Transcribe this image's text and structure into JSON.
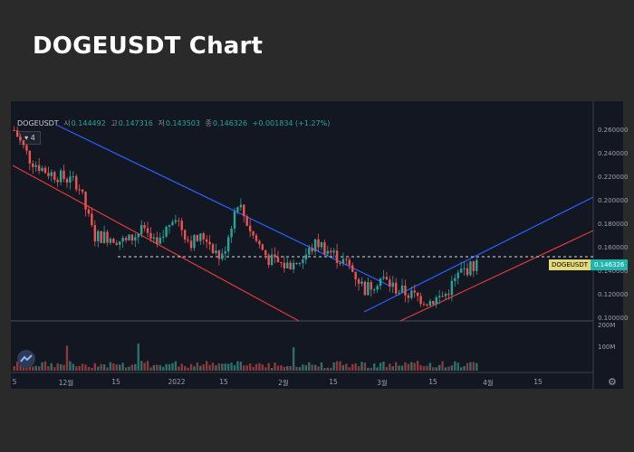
{
  "page": {
    "title": "DOGEUSDT Chart"
  },
  "legend": {
    "symbol": "DOGEUSDT",
    "open_label": "시",
    "open": "0.144492",
    "high_label": "고",
    "high": "0.147316",
    "low_label": "저",
    "low": "0.143503",
    "close_label": "종",
    "close": "0.146326",
    "change": "+0.001834 (+1.27%)"
  },
  "indicator_toggle": "4",
  "price_axis": [
    "0.260000",
    "0.240000",
    "0.220000",
    "0.200000",
    "0.180000",
    "0.160000",
    "0.140000",
    "0.120000",
    "0.100000"
  ],
  "volume_axis": [
    "200M",
    "100M"
  ],
  "time_axis": [
    "5",
    "12월",
    "15",
    "2022",
    "15",
    "2월",
    "15",
    "3월",
    "15",
    "4월",
    "15"
  ],
  "last_price_tag": {
    "symbol": "DOGEUSDT",
    "value": "0.146326"
  },
  "colors": {
    "up": "#26a69a",
    "down": "#ef5350",
    "background": "#131722",
    "trend_blue": "#2962ff",
    "trend_red": "#e53935"
  },
  "chart_data": {
    "type": "candlestick",
    "x_dates": [
      "2021-11-05",
      "2021-11-10",
      "2021-11-15",
      "2021-11-20",
      "2021-11-25",
      "2021-12-01",
      "2021-12-05",
      "2021-12-10",
      "2021-12-15",
      "2021-12-20",
      "2021-12-25",
      "2022-01-01",
      "2022-01-05",
      "2022-01-10",
      "2022-01-15",
      "2022-01-20",
      "2022-01-25",
      "2022-02-01",
      "2022-02-05",
      "2022-02-10",
      "2022-02-15",
      "2022-02-20",
      "2022-02-25",
      "2022-03-01",
      "2022-03-05",
      "2022-03-10",
      "2022-03-15",
      "2022-03-20",
      "2022-03-25",
      "2022-03-28"
    ],
    "close": [
      0.26,
      0.235,
      0.225,
      0.22,
      0.215,
      0.17,
      0.17,
      0.165,
      0.175,
      0.16,
      0.19,
      0.165,
      0.17,
      0.15,
      0.2,
      0.17,
      0.15,
      0.145,
      0.15,
      0.165,
      0.155,
      0.145,
      0.125,
      0.135,
      0.125,
      0.12,
      0.115,
      0.12,
      0.14,
      0.146326
    ],
    "ylim": [
      0.1,
      0.26
    ],
    "last_close": 0.146326,
    "resistance_level": 0.155
  }
}
